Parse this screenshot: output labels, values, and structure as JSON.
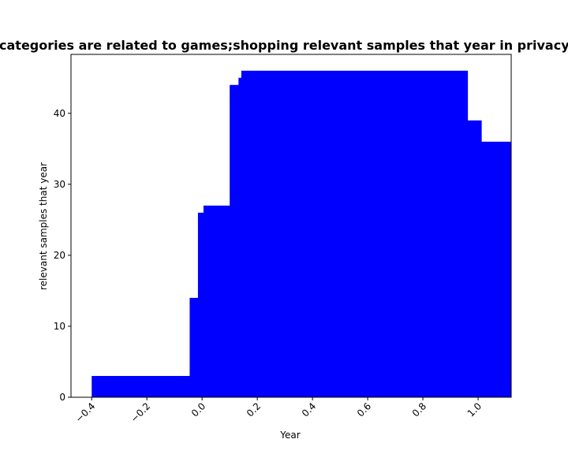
{
  "chart_data": {
    "type": "bar",
    "title": "Which categories are related to games;shopping relevant samples that year in privacy policies",
    "xlabel": "Year",
    "ylabel": "relevant samples that year",
    "xlim": [
      -0.475,
      1.12
    ],
    "ylim": [
      0,
      48.3
    ],
    "xticks": [
      -0.4,
      -0.2,
      0.0,
      0.2,
      0.4,
      0.6,
      0.8,
      1.0
    ],
    "xtick_labels": [
      "−0.4",
      "−0.2",
      "0.0",
      "0.2",
      "0.4",
      "0.6",
      "0.8",
      "1.0"
    ],
    "yticks": [
      0,
      10,
      20,
      30,
      40
    ],
    "ytick_labels": [
      "0",
      "10",
      "20",
      "30",
      "40"
    ],
    "grid": false,
    "bar_color": "#0000ff",
    "bars": [
      {
        "x0": -0.4,
        "x1": -0.045,
        "value": 3
      },
      {
        "x0": -0.045,
        "x1": -0.015,
        "value": 14
      },
      {
        "x0": -0.015,
        "x1": 0.005,
        "value": 26
      },
      {
        "x0": 0.005,
        "x1": 0.1,
        "value": 27
      },
      {
        "x0": 0.1,
        "x1": 0.132,
        "value": 44
      },
      {
        "x0": 0.132,
        "x1": 0.142,
        "value": 45
      },
      {
        "x0": 0.142,
        "x1": 0.962,
        "value": 46
      },
      {
        "x0": 0.962,
        "x1": 1.012,
        "value": 39
      },
      {
        "x0": 1.012,
        "x1": 1.12,
        "value": 36
      }
    ]
  }
}
